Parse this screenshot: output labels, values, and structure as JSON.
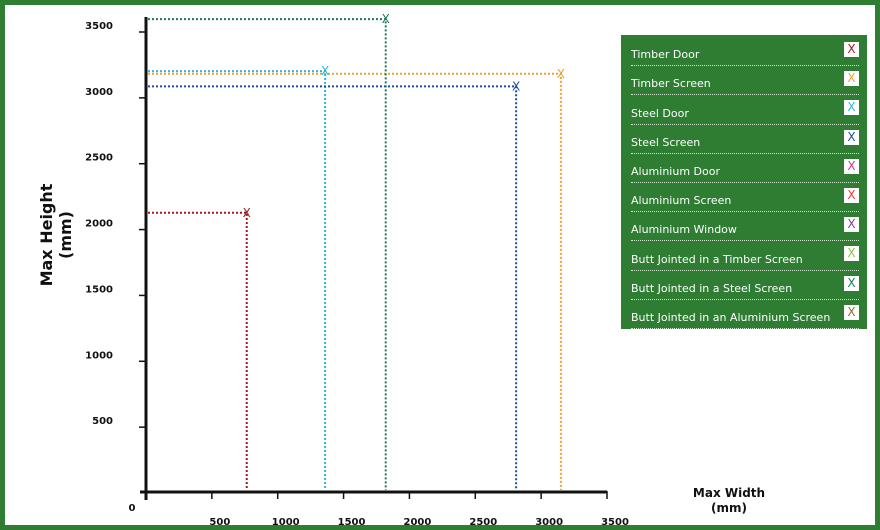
{
  "chart_data": {
    "type": "scatter",
    "xlabel": "Max Width\n(mm)",
    "ylabel": "Max Height\n(mm)",
    "xlim": [
      0,
      3500
    ],
    "ylim": [
      0,
      3600
    ],
    "x_ticks": [
      "0",
      "500",
      "1000",
      "1500",
      "2000",
      "2500",
      "3000",
      "3500"
    ],
    "y_ticks": [
      "500",
      "1000",
      "1500",
      "2000",
      "2500",
      "3000",
      "3500"
    ],
    "legend_position": "top-right",
    "series": [
      {
        "name": "Timber Door",
        "color": "#9b1d1d",
        "points": [
          [
            765,
            2120
          ]
        ]
      },
      {
        "name": "Timber Screen",
        "color": "#f0a030",
        "points": [
          [
            3150,
            3175
          ]
        ]
      },
      {
        "name": "Steel Door",
        "color": "#29b6d8",
        "points": [
          [
            1360,
            3195
          ]
        ]
      },
      {
        "name": "Steel Screen",
        "color": "#1f4e9c",
        "points": [
          [
            2810,
            3080
          ]
        ]
      },
      {
        "name": "Aluminium Door",
        "color": "#e0308c",
        "points": []
      },
      {
        "name": "Aluminium Screen",
        "color": "#e83a3a",
        "points": []
      },
      {
        "name": "Aluminium Window",
        "color": "#7b3fa0",
        "points": []
      },
      {
        "name": "Butt Jointed in a Timber Screen",
        "color": "#8bc34a",
        "points": []
      },
      {
        "name": "Butt Jointed in a Steel Screen",
        "color": "#1e7a5a",
        "points": [
          [
            1820,
            3590
          ]
        ]
      },
      {
        "name": "Butt Jointed in an Aluminium Screen",
        "color": "#9a6a2a",
        "points": []
      }
    ]
  },
  "marker_glyph": "X"
}
